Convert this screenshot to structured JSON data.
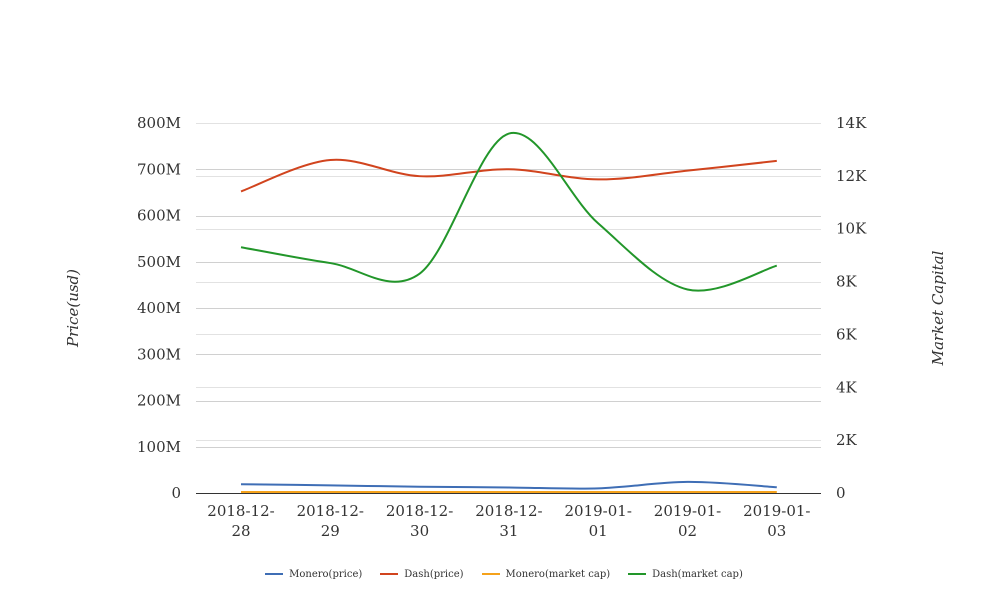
{
  "chart_data": {
    "type": "line",
    "categories": [
      "2018-12-28",
      "2018-12-29",
      "2018-12-30",
      "2018-12-31",
      "2019-01-01",
      "2019-01-02",
      "2019-01-03"
    ],
    "category_lines": [
      [
        "2018-12-",
        "28"
      ],
      [
        "2018-12-",
        "29"
      ],
      [
        "2018-12-",
        "30"
      ],
      [
        "2018-12-",
        "31"
      ],
      [
        "2019-01-",
        "01"
      ],
      [
        "2019-01-",
        "02"
      ],
      [
        "2019-01-",
        "03"
      ]
    ],
    "y_left": {
      "label": "Price(usd)",
      "range": [
        0,
        800000000
      ],
      "ticks": [
        0,
        100000000,
        200000000,
        300000000,
        400000000,
        500000000,
        600000000,
        700000000,
        800000000
      ],
      "tick_labels": [
        "0",
        "100M",
        "200M",
        "300M",
        "400M",
        "500M",
        "600M",
        "700M",
        "800M"
      ]
    },
    "y_right": {
      "label": "Market Capital",
      "range": [
        0,
        14000
      ],
      "ticks": [
        0,
        2000,
        4000,
        6000,
        8000,
        10000,
        12000,
        14000
      ],
      "tick_labels": [
        "0",
        "2K",
        "4K",
        "6K",
        "8K",
        "10K",
        "12K",
        "14K"
      ]
    },
    "series": [
      {
        "name": "Monero(price)",
        "axis": "left",
        "color": "#3f6eb5",
        "values": [
          19000000,
          16500000,
          13500000,
          12000000,
          10000000,
          24000000,
          12500000
        ]
      },
      {
        "name": "Dash(price)",
        "axis": "left",
        "color": "#d1441e",
        "values": [
          652000000,
          720000000,
          685000000,
          700000000,
          678000000,
          697000000,
          718000000
        ]
      },
      {
        "name": "Monero(market cap)",
        "axis": "right",
        "color": "#f5a21b",
        "values": [
          40,
          40,
          40,
          40,
          40,
          40,
          40
        ]
      },
      {
        "name": "Dash(market cap)",
        "axis": "right",
        "color": "#22962a",
        "values": [
          9300,
          8700,
          8300,
          13600,
          10200,
          7700,
          8600
        ]
      }
    ],
    "grid": true,
    "legend_position": "bottom"
  }
}
